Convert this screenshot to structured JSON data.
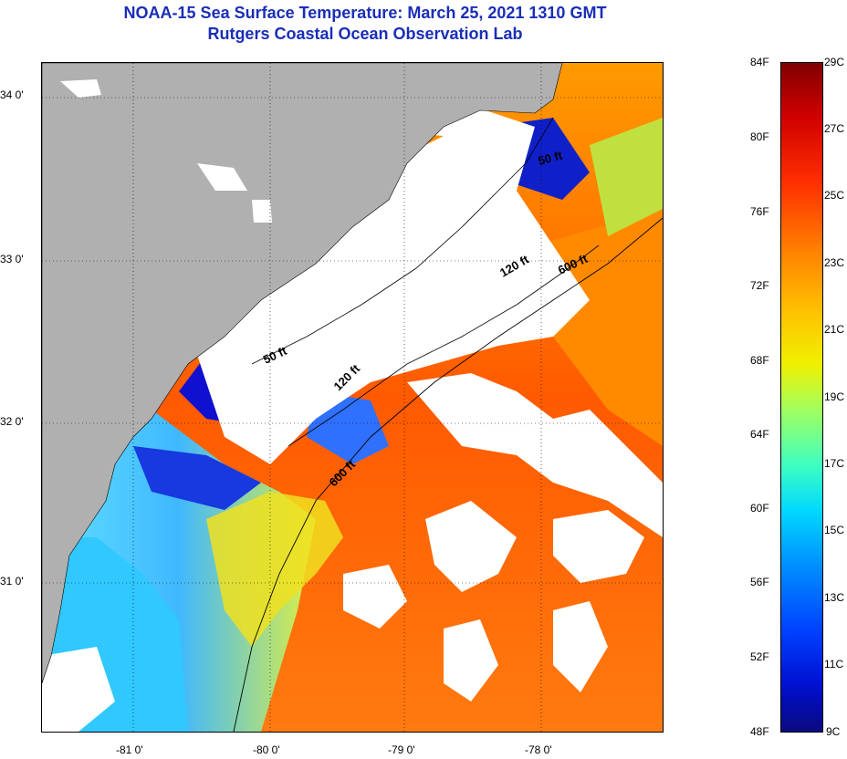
{
  "title": {
    "line1": "NOAA-15 Sea Surface Temperature:  March 25, 2021 1310 GMT",
    "line2": "Rutgers Coastal Ocean Observation Lab"
  },
  "map": {
    "lat_labels": [
      "34 0'",
      "33 0'",
      "32 0'",
      "31 0'"
    ],
    "lon_labels": [
      "-81 0'",
      "-80 0'",
      "-79 0'",
      "-78 0'"
    ],
    "contour_labels": [
      "50 ft",
      "120 ft",
      "600 ft",
      "50 ft",
      "120 ft",
      "600 ft"
    ]
  },
  "colorbar": {
    "fahrenheit": [
      "84F",
      "80F",
      "76F",
      "72F",
      "68F",
      "64F",
      "60F",
      "56F",
      "52F",
      "48F"
    ],
    "celsius": [
      "29C",
      "27C",
      "25C",
      "23C",
      "21C",
      "19C",
      "17C",
      "15C",
      "13C",
      "11C",
      "9C"
    ]
  },
  "colors": {
    "title": "#1a2eb8",
    "land": "#b0b0b0",
    "cloud": "#ffffff"
  }
}
